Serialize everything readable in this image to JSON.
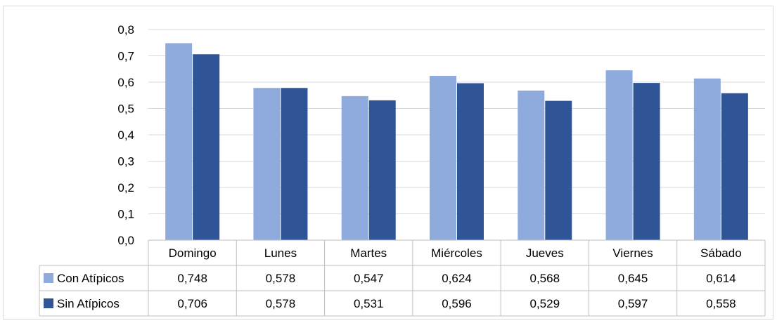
{
  "chart_data": {
    "type": "bar",
    "categories": [
      "Domingo",
      "Lunes",
      "Martes",
      "Miércoles",
      "Jueves",
      "Viernes",
      "Sábado"
    ],
    "series": [
      {
        "name": "Con Atípicos",
        "color": "#8faadc",
        "values": [
          0.748,
          0.578,
          0.547,
          0.624,
          0.568,
          0.645,
          0.614
        ],
        "labels": [
          "0,748",
          "0,578",
          "0,547",
          "0,624",
          "0,568",
          "0,645",
          "0,614"
        ]
      },
      {
        "name": "Sin Atípicos",
        "color": "#2f5597",
        "values": [
          0.706,
          0.578,
          0.531,
          0.596,
          0.529,
          0.597,
          0.558
        ],
        "labels": [
          "0,706",
          "0,578",
          "0,531",
          "0,596",
          "0,529",
          "0,597",
          "0,558"
        ]
      }
    ],
    "ylim": [
      0,
      0.8
    ],
    "yticks": [
      0,
      0.1,
      0.2,
      0.3,
      0.4,
      0.5,
      0.6,
      0.7,
      0.8
    ],
    "ytick_labels": [
      "0,0",
      "0,1",
      "0,2",
      "0,3",
      "0,4",
      "0,5",
      "0,6",
      "0,7",
      "0,8"
    ],
    "grid": true,
    "legend": "data-table"
  },
  "colors": {
    "gridline": "#d9d9d9",
    "table_border": "#bfbfbf"
  }
}
